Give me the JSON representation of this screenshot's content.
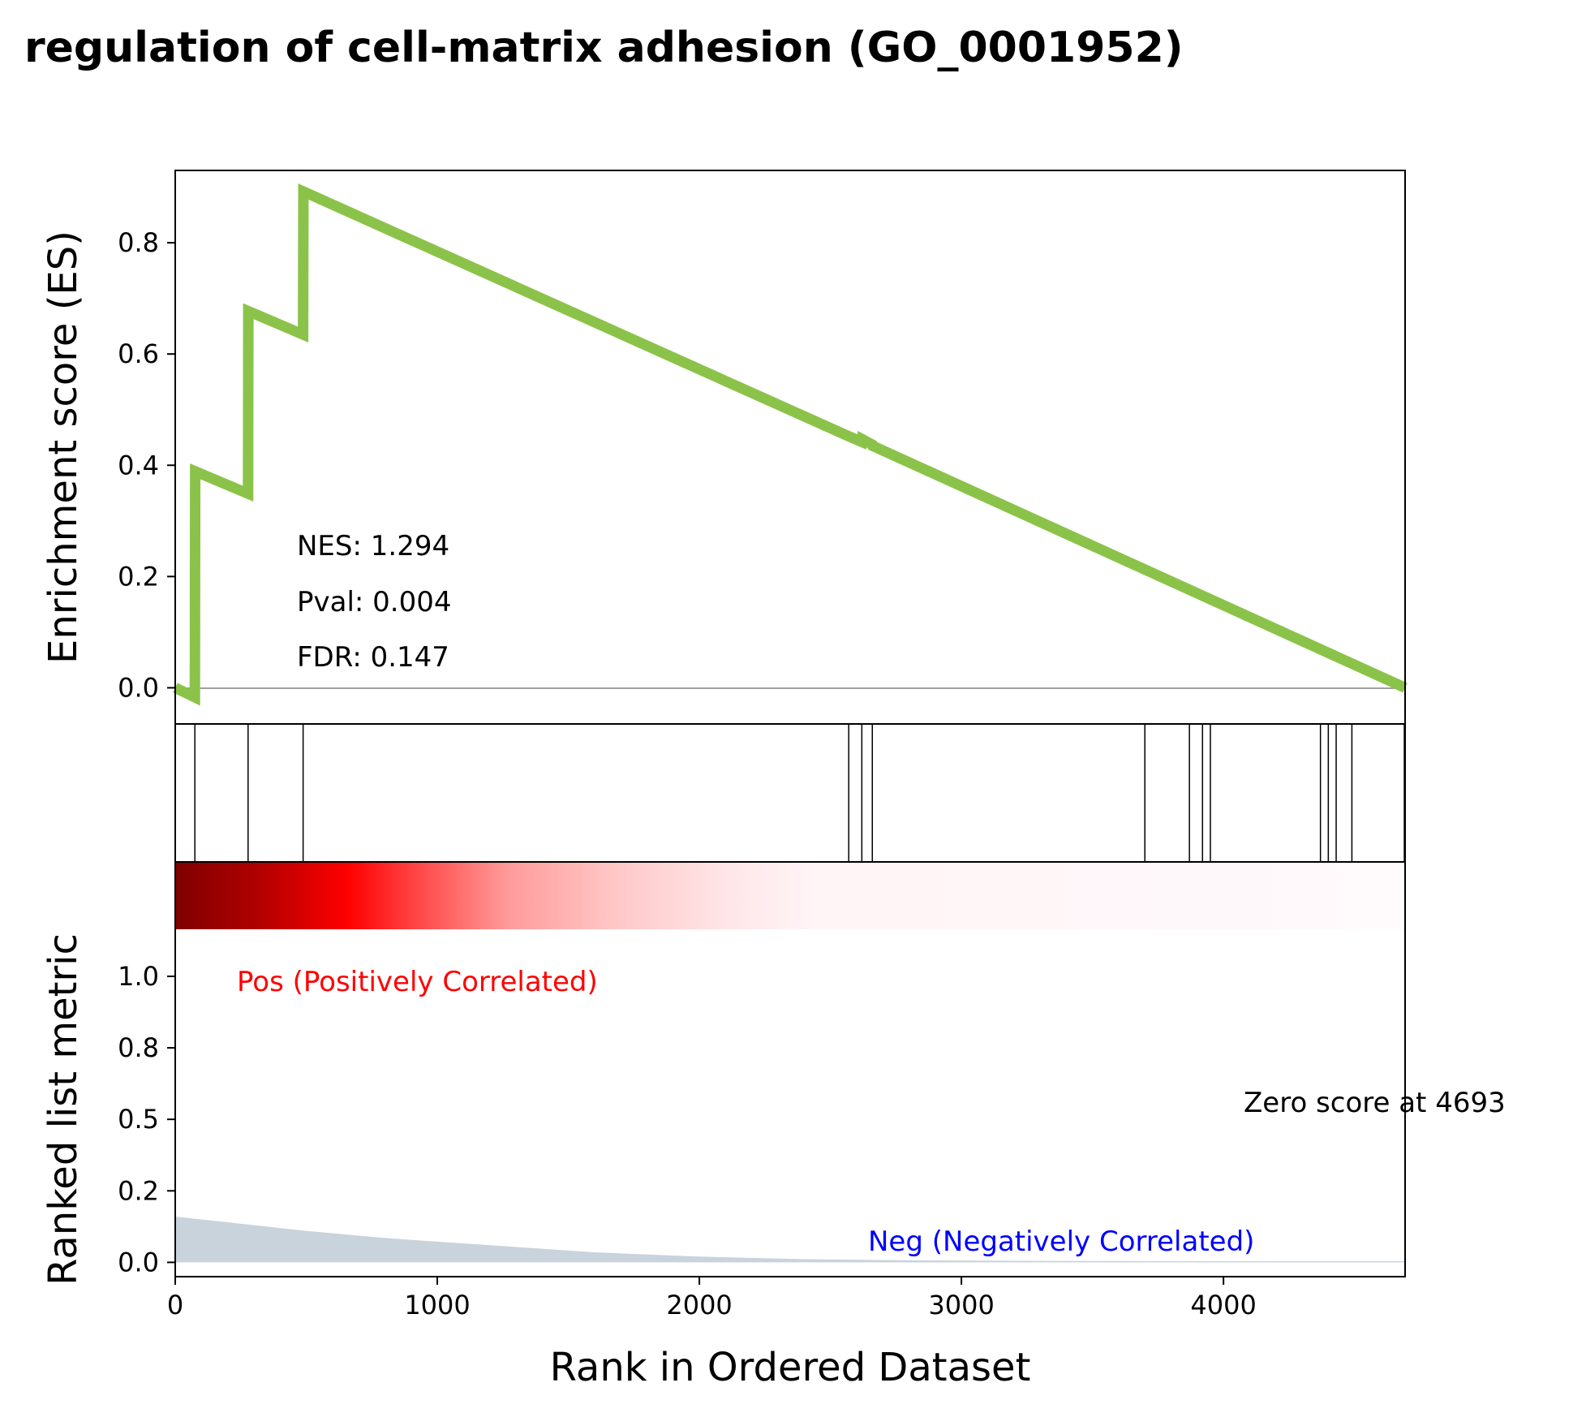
{
  "chart_data": {
    "type": "line",
    "title": "regulation of cell-matrix adhesion (GO_0001952)",
    "es_panel": {
      "ylabel": "Enrichment score (ES)",
      "ylim": [
        -0.065,
        0.93
      ],
      "yticks": [
        0.0,
        0.2,
        0.4,
        0.6,
        0.8
      ],
      "ytick_labels": [
        "0.0",
        "0.2",
        "0.4",
        "0.6",
        "0.8"
      ],
      "line_color": "#8bc34a",
      "zero_line_color": "#808080",
      "es_points": [
        {
          "x": 0,
          "y": 0.0
        },
        {
          "x": 75,
          "y": -0.017
        },
        {
          "x": 76,
          "y": 0.389
        },
        {
          "x": 278,
          "y": 0.349
        },
        {
          "x": 279,
          "y": 0.677
        },
        {
          "x": 488,
          "y": 0.635
        },
        {
          "x": 489,
          "y": 0.892
        },
        {
          "x": 2570,
          "y": 0.452
        },
        {
          "x": 2620,
          "y": 0.442
        },
        {
          "x": 2621,
          "y": 0.447
        },
        {
          "x": 2660,
          "y": 0.437
        },
        {
          "x": 2661,
          "y": 0.435
        },
        {
          "x": 4693,
          "y": 0.0
        }
      ],
      "stats": {
        "nes": "NES: 1.294",
        "pval": "Pval: 0.004",
        "fdr": "FDR: 0.147"
      }
    },
    "hits": [
      75,
      278,
      488,
      2570,
      2620,
      2660,
      3700,
      3870,
      3920,
      3950,
      4370,
      4400,
      4430,
      4490,
      4690
    ],
    "rank_panel": {
      "ylabel": "Ranked list metric",
      "ylim": [
        -0.05,
        1.4
      ],
      "yticks": [
        0.0,
        0.25,
        0.5,
        0.75,
        1.0
      ],
      "ytick_labels": [
        "0.0",
        "0.2",
        "0.5",
        "0.8",
        "1.0"
      ],
      "fill_color": "#c8d3dc",
      "metric_points": [
        {
          "x": 0,
          "y": 0.16
        },
        {
          "x": 200,
          "y": 0.14
        },
        {
          "x": 500,
          "y": 0.11
        },
        {
          "x": 800,
          "y": 0.085
        },
        {
          "x": 1200,
          "y": 0.06
        },
        {
          "x": 1600,
          "y": 0.035
        },
        {
          "x": 2000,
          "y": 0.02
        },
        {
          "x": 2400,
          "y": 0.011
        },
        {
          "x": 2800,
          "y": 0.007
        },
        {
          "x": 3300,
          "y": 0.005
        },
        {
          "x": 4000,
          "y": 0.004
        },
        {
          "x": 4693,
          "y": 0.004
        }
      ],
      "pos_label": "Pos (Positively Correlated)",
      "neg_label": "Neg (Negatively Correlated)",
      "zero_label": "Zero score at 4693",
      "zero_score_at": 4693
    },
    "xlabel": "Rank in Ordered Dataset",
    "xlim": [
      0,
      4693
    ],
    "xticks": [
      0,
      1000,
      2000,
      3000,
      4000
    ],
    "xtick_labels": [
      "0",
      "1000",
      "2000",
      "3000",
      "4000"
    ]
  }
}
